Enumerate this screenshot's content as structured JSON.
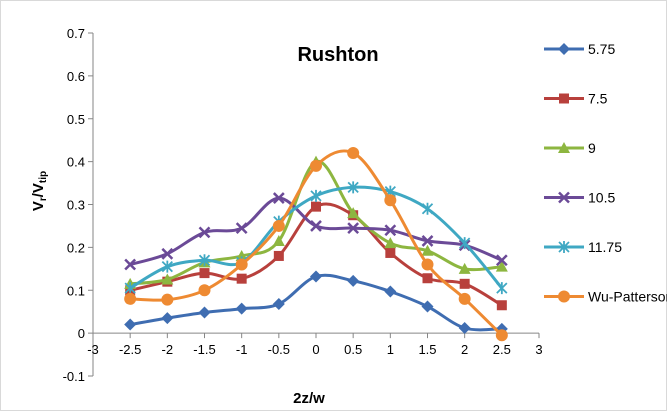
{
  "chart_data": {
    "type": "line",
    "title": "Rushton",
    "xlabel": "2z/w",
    "ylabel": {
      "main": "V",
      "sub1": "r",
      "slash": "/V",
      "sub2": "tip"
    },
    "xlim": [
      -3,
      3
    ],
    "ylim": [
      -0.1,
      0.7
    ],
    "xticks": [
      "-3",
      "-2.5",
      "-2",
      "-1.5",
      "-1",
      "-0.5",
      "0",
      "0.5",
      "1",
      "1.5",
      "2",
      "2.5",
      "3"
    ],
    "yticks": [
      "-0.1",
      "0",
      "0.1",
      "0.2",
      "0.3",
      "0.4",
      "0.5",
      "0.6",
      "0.7"
    ],
    "grid": false,
    "legend_position": "right",
    "x": [
      -2.5,
      -2,
      -1.5,
      -1,
      -0.5,
      0,
      0.5,
      1,
      1.5,
      2,
      2.5
    ],
    "series": [
      {
        "name": "5.75",
        "color": "#3f6db1",
        "marker": "diamond",
        "values": [
          0.02,
          0.035,
          0.048,
          0.057,
          0.068,
          0.132,
          0.122,
          0.097,
          0.062,
          0.012,
          0.01
        ]
      },
      {
        "name": "7.5",
        "color": "#b8403c",
        "marker": "square",
        "values": [
          0.1,
          0.12,
          0.14,
          0.127,
          0.18,
          0.295,
          0.275,
          0.187,
          0.128,
          0.115,
          0.065
        ]
      },
      {
        "name": "9",
        "color": "#8db640",
        "marker": "triangle",
        "values": [
          0.115,
          0.125,
          0.165,
          0.18,
          0.215,
          0.4,
          0.28,
          0.21,
          0.192,
          0.15,
          0.155
        ]
      },
      {
        "name": "10.5",
        "color": "#6b4a97",
        "marker": "x",
        "values": [
          0.16,
          0.185,
          0.235,
          0.245,
          0.315,
          0.25,
          0.245,
          0.24,
          0.215,
          0.205,
          0.17
        ]
      },
      {
        "name": "11.75",
        "color": "#3fa8c3",
        "marker": "asterisk",
        "values": [
          0.105,
          0.155,
          0.17,
          0.165,
          0.26,
          0.32,
          0.34,
          0.33,
          0.29,
          0.21,
          0.105
        ]
      },
      {
        "name": "Wu-Patterson",
        "color": "#ee8a32",
        "marker": "circle",
        "values": [
          0.08,
          0.078,
          0.1,
          0.16,
          0.25,
          0.39,
          0.42,
          0.31,
          0.16,
          0.08,
          -0.005
        ]
      }
    ]
  }
}
